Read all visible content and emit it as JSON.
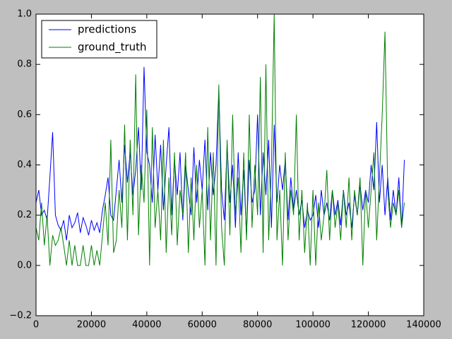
{
  "chart_data": {
    "type": "line",
    "x": [
      0,
      1000,
      2000,
      3000,
      4000,
      5000,
      6000,
      7000,
      8000,
      9000,
      10000,
      11000,
      12000,
      13000,
      14000,
      15000,
      16000,
      17000,
      18000,
      19000,
      20000,
      21000,
      22000,
      23000,
      24000,
      25000,
      26000,
      27000,
      28000,
      29000,
      30000,
      31000,
      32000,
      33000,
      34000,
      35000,
      36000,
      37000,
      38000,
      39000,
      40000,
      41000,
      42000,
      43000,
      44000,
      45000,
      46000,
      47000,
      48000,
      49000,
      50000,
      51000,
      52000,
      53000,
      54000,
      55000,
      56000,
      57000,
      58000,
      59000,
      60000,
      61000,
      62000,
      63000,
      64000,
      65000,
      66000,
      67000,
      68000,
      69000,
      70000,
      71000,
      72000,
      73000,
      74000,
      75000,
      76000,
      77000,
      78000,
      79000,
      80000,
      81000,
      82000,
      83000,
      84000,
      85000,
      86000,
      87000,
      88000,
      89000,
      90000,
      91000,
      92000,
      93000,
      94000,
      95000,
      96000,
      97000,
      98000,
      99000,
      100000,
      101000,
      102000,
      103000,
      104000,
      105000,
      106000,
      107000,
      108000,
      109000,
      110000,
      111000,
      112000,
      113000,
      114000,
      115000,
      116000,
      117000,
      118000,
      119000,
      120000,
      121000,
      122000,
      123000,
      124000,
      125000,
      126000,
      127000,
      128000,
      129000,
      130000,
      131000,
      132000,
      133000
    ],
    "series": [
      {
        "name": "predictions",
        "color": "#0000ff",
        "values": [
          0.25,
          0.3,
          0.2,
          0.22,
          0.18,
          0.35,
          0.53,
          0.2,
          0.16,
          0.14,
          0.18,
          0.1,
          0.2,
          0.15,
          0.17,
          0.21,
          0.13,
          0.19,
          0.16,
          0.12,
          0.18,
          0.14,
          0.17,
          0.13,
          0.22,
          0.28,
          0.35,
          0.2,
          0.18,
          0.3,
          0.42,
          0.25,
          0.48,
          0.33,
          0.45,
          0.28,
          0.38,
          0.55,
          0.3,
          0.79,
          0.45,
          0.4,
          0.25,
          0.52,
          0.3,
          0.48,
          0.22,
          0.4,
          0.55,
          0.2,
          0.42,
          0.28,
          0.45,
          0.18,
          0.4,
          0.3,
          0.2,
          0.47,
          0.25,
          0.42,
          0.3,
          0.5,
          0.22,
          0.45,
          0.28,
          0.4,
          0.7,
          0.3,
          0.18,
          0.48,
          0.25,
          0.4,
          0.15,
          0.45,
          0.2,
          0.38,
          0.12,
          0.42,
          0.25,
          0.3,
          0.6,
          0.2,
          0.45,
          0.28,
          0.5,
          0.15,
          0.56,
          0.25,
          0.4,
          0.3,
          0.42,
          0.18,
          0.35,
          0.22,
          0.3,
          0.2,
          0.26,
          0.15,
          0.22,
          0.18,
          0.2,
          0.28,
          0.15,
          0.3,
          0.2,
          0.25,
          0.18,
          0.3,
          0.2,
          0.26,
          0.16,
          0.3,
          0.2,
          0.25,
          0.15,
          0.28,
          0.2,
          0.32,
          0.22,
          0.3,
          0.25,
          0.4,
          0.3,
          0.57,
          0.25,
          0.4,
          0.2,
          0.35,
          0.18,
          0.3,
          0.2,
          0.35,
          0.15,
          0.42
        ]
      },
      {
        "name": "ground_truth",
        "color": "#008000",
        "values": [
          0.15,
          0.1,
          0.25,
          0.08,
          0.2,
          0.0,
          0.12,
          0.08,
          0.1,
          0.15,
          0.08,
          0.0,
          0.1,
          0.0,
          0.08,
          0.0,
          0.0,
          0.08,
          0.0,
          0.0,
          0.08,
          0.0,
          0.06,
          0.0,
          0.12,
          0.25,
          0.08,
          0.5,
          0.05,
          0.1,
          0.3,
          0.15,
          0.56,
          0.1,
          0.5,
          0.2,
          0.76,
          0.12,
          0.4,
          0.25,
          0.62,
          0.0,
          0.55,
          0.15,
          0.3,
          0.1,
          0.5,
          0.05,
          0.35,
          0.12,
          0.45,
          0.08,
          0.3,
          0.2,
          0.45,
          0.05,
          0.35,
          0.1,
          0.4,
          0.15,
          0.3,
          0.0,
          0.55,
          0.1,
          0.45,
          0.0,
          0.72,
          0.15,
          0.0,
          0.5,
          0.12,
          0.6,
          0.2,
          0.35,
          0.05,
          0.45,
          0.1,
          0.6,
          0.15,
          0.4,
          0.2,
          0.75,
          0.05,
          0.8,
          0.1,
          0.4,
          1.0,
          0.1,
          0.3,
          0.0,
          0.45,
          0.1,
          0.3,
          0.2,
          0.6,
          0.1,
          0.3,
          0.05,
          0.25,
          0.0,
          0.3,
          0.0,
          0.25,
          0.1,
          0.2,
          0.38,
          0.1,
          0.3,
          0.15,
          0.25,
          0.1,
          0.3,
          0.15,
          0.35,
          0.1,
          0.3,
          0.2,
          0.35,
          0.0,
          0.3,
          0.15,
          0.3,
          0.45,
          0.1,
          0.35,
          0.6,
          0.93,
          0.3,
          0.15,
          0.25,
          0.2,
          0.3,
          0.15,
          0.25
        ]
      }
    ],
    "xlim": [
      0,
      140000
    ],
    "xticks": [
      0,
      20000,
      40000,
      60000,
      80000,
      100000,
      120000,
      140000
    ],
    "ylim": [
      -0.2,
      1.0
    ],
    "yticks": [
      {
        "value": -0.2,
        "label": "−0.2"
      },
      {
        "value": 0,
        "label": "0.0"
      },
      0.2,
      0.4,
      0.6,
      0.8,
      {
        "value": 1,
        "label": "1.0"
      }
    ],
    "legend": "upper left"
  }
}
